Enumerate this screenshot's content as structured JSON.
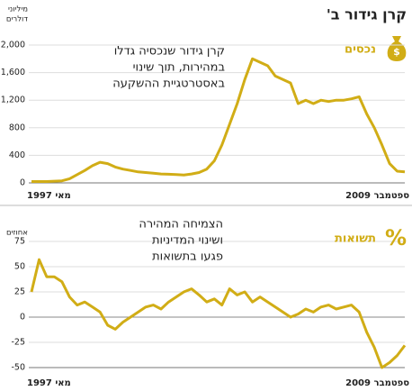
{
  "title": "קרן גידור ב'",
  "chart_data": [
    {
      "type": "line",
      "label": "נכסים",
      "icon_label": "$",
      "y_unit": [
        "מיליוני",
        "דולרים"
      ],
      "annotation": [
        "קרן גידור שנכסיה גדלו",
        "במהירות, תוך שינוי",
        "באסטרטגיית ההשקעה"
      ],
      "categories": [
        "מאי 1997",
        null,
        null,
        null,
        null,
        null,
        null,
        null,
        null,
        null,
        null,
        null,
        null,
        null,
        null,
        null,
        null,
        null,
        null,
        null,
        null,
        null,
        null,
        null,
        null,
        null,
        null,
        null,
        null,
        null,
        null,
        null,
        null,
        null,
        null,
        null,
        null,
        null,
        null,
        null,
        null,
        null,
        null,
        null,
        null,
        null,
        null,
        null,
        null,
        "ספטמבר 2009"
      ],
      "values": [
        20,
        20,
        20,
        25,
        30,
        60,
        120,
        180,
        250,
        300,
        280,
        230,
        200,
        180,
        160,
        150,
        140,
        130,
        125,
        120,
        115,
        130,
        150,
        200,
        320,
        550,
        850,
        1150,
        1500,
        1800,
        1750,
        1700,
        1550,
        1500,
        1450,
        1150,
        1200,
        1150,
        1200,
        1180,
        1200,
        1200,
        1220,
        1250,
        1000,
        800,
        550,
        280,
        170,
        160
      ],
      "color": "#d1ad16",
      "ylim": [
        0,
        2000
      ],
      "yticks": [
        0,
        400,
        800,
        {
          "value": 1200,
          "label": "1,200"
        },
        {
          "value": 1600,
          "label": "1,600"
        },
        {
          "value": 2000,
          "label": "2,000"
        }
      ],
      "grid": true
    },
    {
      "type": "line",
      "label": "תשואות",
      "icon_label": "%",
      "y_unit": [
        "אחוזים"
      ],
      "annotation": [
        "הצמיחה המהירה",
        "ושינוי המדיניות",
        "פגעו בתשואות"
      ],
      "categories": [
        "מאי 1997",
        null,
        null,
        null,
        null,
        null,
        null,
        null,
        null,
        null,
        null,
        null,
        null,
        null,
        null,
        null,
        null,
        null,
        null,
        null,
        null,
        null,
        null,
        null,
        null,
        null,
        null,
        null,
        null,
        null,
        null,
        null,
        null,
        null,
        null,
        null,
        null,
        null,
        null,
        null,
        null,
        null,
        null,
        null,
        null,
        null,
        null,
        null,
        null,
        "ספטמבר 2009"
      ],
      "values": [
        25,
        57,
        40,
        40,
        35,
        20,
        12,
        15,
        10,
        5,
        -8,
        -12,
        -5,
        0,
        5,
        10,
        12,
        8,
        15,
        20,
        25,
        28,
        22,
        15,
        18,
        12,
        28,
        22,
        25,
        15,
        20,
        15,
        10,
        5,
        0,
        3,
        8,
        5,
        10,
        12,
        8,
        10,
        12,
        5,
        -15,
        -30,
        -50,
        -45,
        -38,
        -28
      ],
      "color": "#d1ad16",
      "ylim": [
        -50,
        75
      ],
      "yticks": [
        75,
        50,
        25,
        0,
        -25,
        -50
      ],
      "grid": true
    }
  ]
}
